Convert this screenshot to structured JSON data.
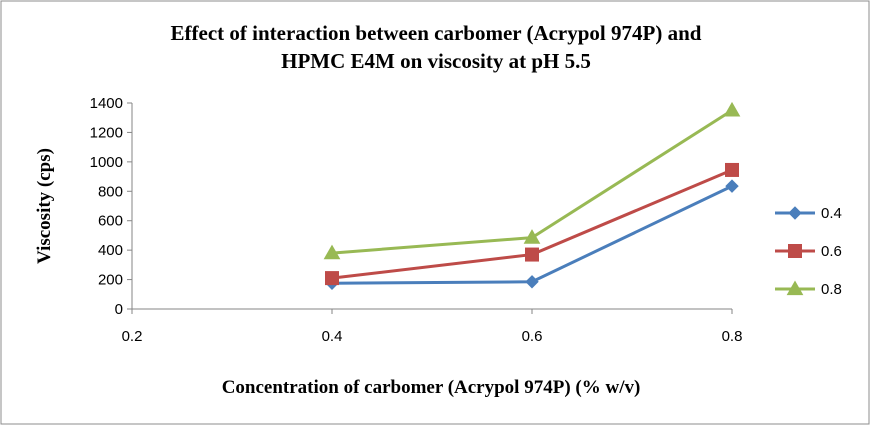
{
  "chart_data": {
    "type": "line",
    "title": [
      "Effect of interaction between carbomer (Acrypol 974P) and",
      "HPMC E4M on viscosity at pH 5.5"
    ],
    "xlabel": "Concentration of carbomer (Acrypol 974P) (% w/v)",
    "ylabel": "Viscosity (cps)",
    "xlim": [
      0.2,
      0.8
    ],
    "ylim": [
      0,
      1400
    ],
    "x_ticks": [
      "0.2",
      "0.4",
      "0.6",
      "0.8"
    ],
    "y_ticks": [
      "0",
      "200",
      "400",
      "600",
      "800",
      "1000",
      "1200",
      "1400"
    ],
    "x": [
      0.4,
      0.6,
      0.8
    ],
    "grid": false,
    "legend_position": "right",
    "series": [
      {
        "name": "0.4",
        "values": [
          175,
          185,
          835
        ],
        "color": "#4a7ebb",
        "marker": "diamond"
      },
      {
        "name": "0.6",
        "values": [
          210,
          370,
          945
        ],
        "color": "#be4b48",
        "marker": "square"
      },
      {
        "name": "0.8",
        "values": [
          380,
          485,
          1350
        ],
        "color": "#98b954",
        "marker": "triangle"
      }
    ]
  }
}
